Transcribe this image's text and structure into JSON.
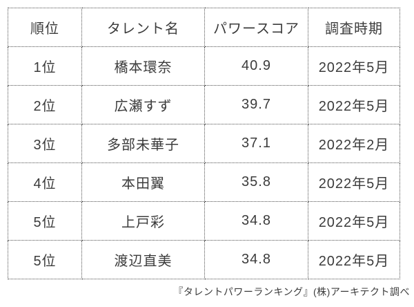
{
  "chart_data": {
    "type": "table",
    "columns": [
      "順位",
      "タレント名",
      "パワースコア",
      "調査時期"
    ],
    "rows": [
      {
        "rank": "1位",
        "name": "橋本環奈",
        "score": "40.9",
        "period": "2022年5月"
      },
      {
        "rank": "2位",
        "name": "広瀬すず",
        "score": "39.7",
        "period": "2022年5月"
      },
      {
        "rank": "3位",
        "name": "多部未華子",
        "score": "37.1",
        "period": "2022年2月"
      },
      {
        "rank": "4位",
        "name": "本田翼",
        "score": "35.8",
        "period": "2022年5月"
      },
      {
        "rank": "5位",
        "name": "上戸彩",
        "score": "34.8",
        "period": "2022年5月"
      },
      {
        "rank": "5位",
        "name": "渡辺直美",
        "score": "34.8",
        "period": "2022年5月"
      }
    ],
    "source_note": "『タレントパワーランキング』(株)アーキテクト調べ"
  },
  "colors": {
    "text": "#3b3b3b",
    "border": "#4f4f4f",
    "background": "#ffffff"
  }
}
